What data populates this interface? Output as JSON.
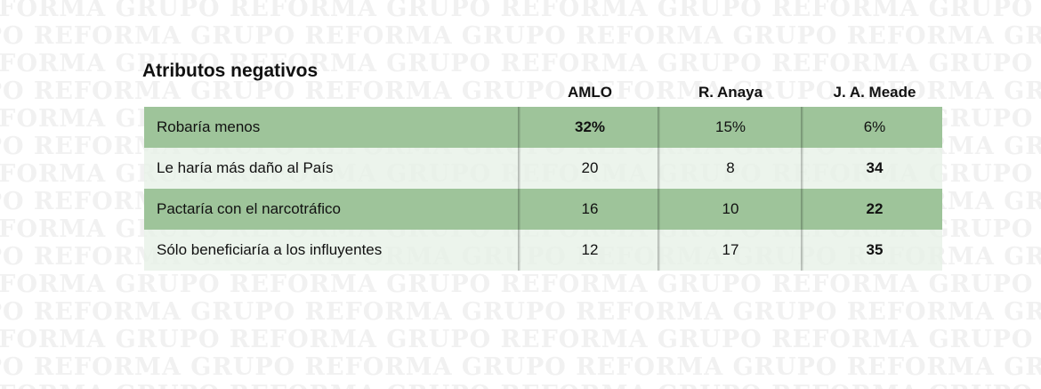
{
  "watermark_text": "GRUPO REFORMA",
  "chart_data": {
    "type": "table",
    "title": "Atributos negativos",
    "columns": [
      "AMLO",
      "R. Anaya",
      "J. A. Meade"
    ],
    "rows": [
      {
        "label": "Robaría menos",
        "display": [
          "32%",
          "15%",
          "6%"
        ],
        "values": [
          32,
          15,
          6
        ],
        "bold": [
          true,
          false,
          false
        ]
      },
      {
        "label": "Le haría más daño al País",
        "display": [
          "20",
          "8",
          "34"
        ],
        "values": [
          20,
          8,
          34
        ],
        "bold": [
          false,
          false,
          true
        ]
      },
      {
        "label": "Pactaría con el narcotráfico",
        "display": [
          "16",
          "10",
          "22"
        ],
        "values": [
          16,
          10,
          22
        ],
        "bold": [
          false,
          false,
          true
        ]
      },
      {
        "label": "Sólo beneficiaría a los influyentes",
        "display": [
          "12",
          "17",
          "35"
        ],
        "values": [
          12,
          17,
          35
        ],
        "bold": [
          false,
          false,
          true
        ]
      }
    ]
  }
}
